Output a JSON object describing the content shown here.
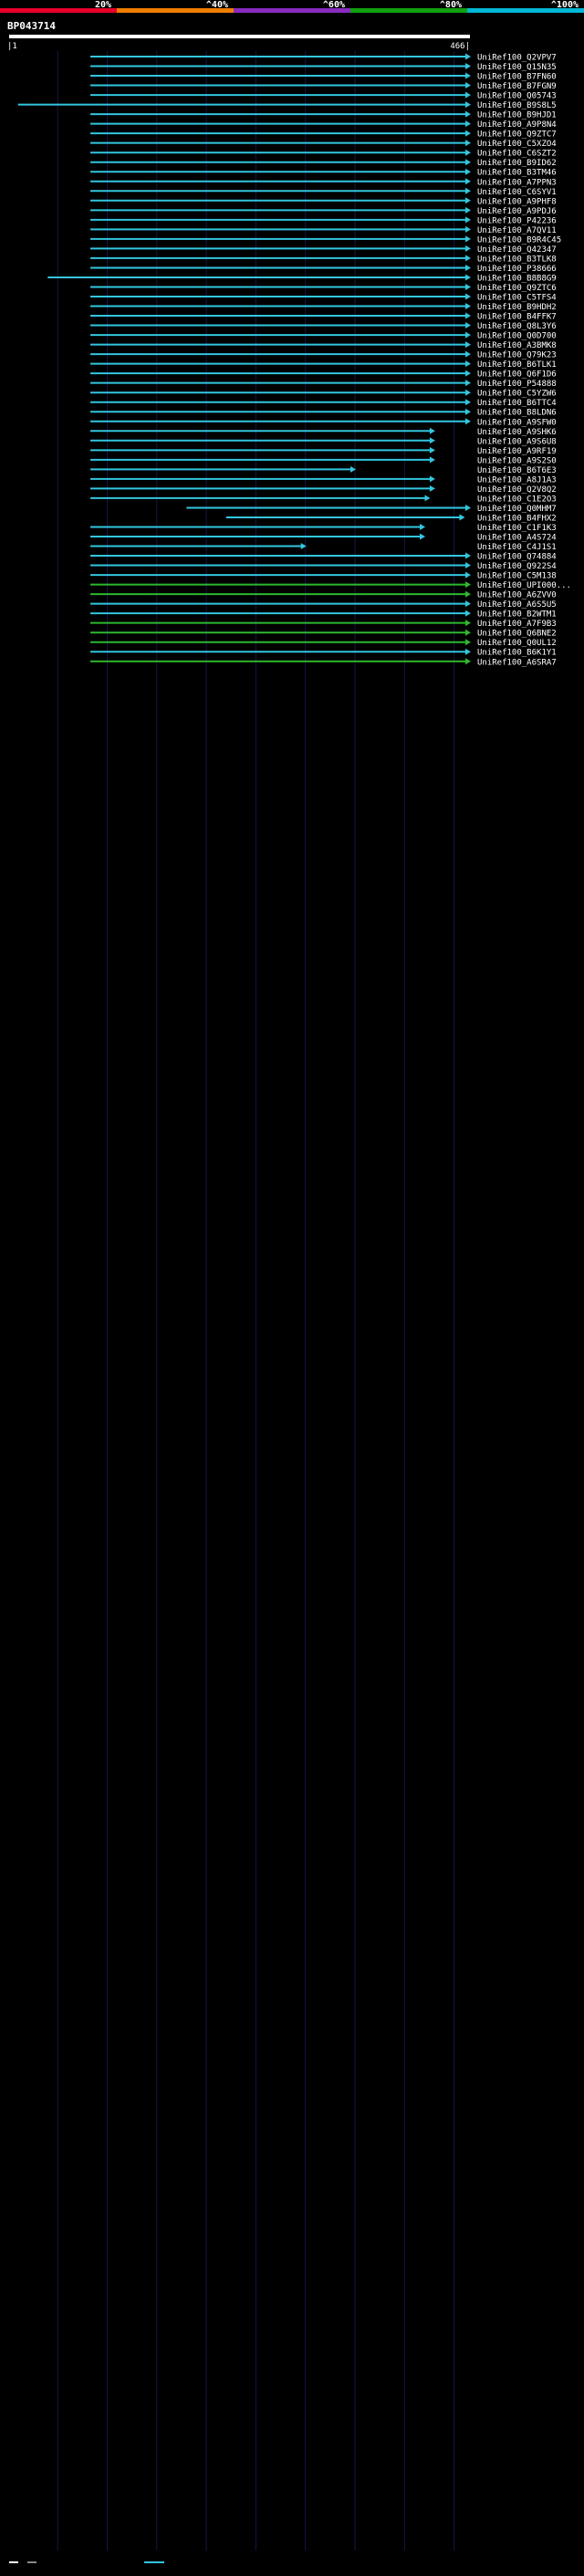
{
  "chart_data": {
    "type": "alignment",
    "title": "BP043714",
    "query_length": 466,
    "axis": {
      "start_label": "1",
      "end_label": "466",
      "tick_marks": [
        "1",
        "466"
      ]
    },
    "color_legend": [
      {
        "label": "20%",
        "color": "#e8002a"
      },
      {
        "label": "^40%",
        "color": "#f07d00"
      },
      {
        "label": "^60%",
        "color": "#8a2bbf"
      },
      {
        "label": "^80%",
        "color": "#12a00f"
      },
      {
        "label": "^100%",
        "color": "#00b7d4"
      }
    ],
    "colors": {
      "cyan": "#33c6df",
      "green": "#2eb82e",
      "magenta": "#d24fd2",
      "query": "#ffffff",
      "grid": "#16164a"
    },
    "hit_color_sequence": [
      "cyan",
      "cyan",
      "cyan",
      "cyan",
      "cyan",
      "cyan",
      "cyan",
      "cyan",
      "cyan",
      "cyan",
      "cyan",
      "cyan",
      "cyan",
      "cyan",
      "cyan",
      "cyan",
      "cyan",
      "cyan",
      "cyan",
      "cyan",
      "cyan",
      "cyan",
      "cyan",
      "cyan",
      "cyan",
      "cyan",
      "cyan",
      "cyan",
      "cyan",
      "cyan",
      "cyan",
      "cyan",
      "cyan",
      "cyan",
      "cyan",
      "cyan",
      "cyan",
      "cyan",
      "cyan",
      "cyan",
      "cyan",
      "cyan",
      "cyan",
      "cyan",
      "cyan",
      "cyan",
      "cyan",
      "cyan",
      "cyan",
      "cyan",
      "cyan",
      "cyan",
      "cyan",
      "cyan",
      "cyan",
      "green",
      "green",
      "cyan",
      "cyan",
      "green",
      "green",
      "green",
      "cyan",
      "green"
    ],
    "hits": [
      {
        "name": "UniRef100_Q2VPV7",
        "start": 83,
        "end": 466
      },
      {
        "name": "UniRef100_Q15N35",
        "start": 83,
        "end": 466
      },
      {
        "name": "UniRef100_B7FN60",
        "start": 83,
        "end": 466
      },
      {
        "name": "UniRef100_B7FGN9",
        "start": 83,
        "end": 466
      },
      {
        "name": "UniRef100_Q05743",
        "start": 83,
        "end": 466
      },
      {
        "name": "UniRef100_B9S8L5",
        "start": 10,
        "end": 466
      },
      {
        "name": "UniRef100_B9HJD1",
        "start": 83,
        "end": 466
      },
      {
        "name": "UniRef100_A9P8N4",
        "start": 83,
        "end": 466
      },
      {
        "name": "UniRef100_Q9ZTC7",
        "start": 83,
        "end": 466
      },
      {
        "name": "UniRef100_C5XZO4",
        "start": 83,
        "end": 466
      },
      {
        "name": "UniRef100_C6SZT2",
        "start": 83,
        "end": 466
      },
      {
        "name": "UniRef100_B9ID62",
        "start": 83,
        "end": 466
      },
      {
        "name": "UniRef100_B3TM46",
        "start": 83,
        "end": 466
      },
      {
        "name": "UniRef100_A7PPN3",
        "start": 83,
        "end": 466
      },
      {
        "name": "UniRef100_C6SYV1",
        "start": 83,
        "end": 466
      },
      {
        "name": "UniRef100_A9PHF8",
        "start": 83,
        "end": 466
      },
      {
        "name": "UniRef100_A9PDJ6",
        "start": 83,
        "end": 466
      },
      {
        "name": "UniRef100_P42236",
        "start": 83,
        "end": 466
      },
      {
        "name": "UniRef100_A7QV11",
        "start": 83,
        "end": 466
      },
      {
        "name": "UniRef100_B9R4C45",
        "start": 83,
        "end": 466
      },
      {
        "name": "UniRef100_Q42347",
        "start": 83,
        "end": 466
      },
      {
        "name": "UniRef100_B3TLK8",
        "start": 83,
        "end": 466
      },
      {
        "name": "UniRef100_P38666",
        "start": 83,
        "end": 466
      },
      {
        "name": "UniRef100_B8B8G9",
        "start": 40,
        "end": 466
      },
      {
        "name": "UniRef100_Q9ZTC6",
        "start": 83,
        "end": 466
      },
      {
        "name": "UniRef100_C5TFS4",
        "start": 83,
        "end": 466
      },
      {
        "name": "UniRef100_B9HDH2",
        "start": 83,
        "end": 466
      },
      {
        "name": "UniRef100_B4FFK7",
        "start": 83,
        "end": 466
      },
      {
        "name": "UniRef100_Q8L3Y6",
        "start": 83,
        "end": 466
      },
      {
        "name": "UniRef100_Q0D700",
        "start": 83,
        "end": 466
      },
      {
        "name": "UniRef100_A3BMK8",
        "start": 83,
        "end": 466
      },
      {
        "name": "UniRef100_Q79K23",
        "start": 83,
        "end": 466
      },
      {
        "name": "UniRef100_B6TLK1",
        "start": 83,
        "end": 466
      },
      {
        "name": "UniRef100_Q6F1D6",
        "start": 83,
        "end": 466
      },
      {
        "name": "UniRef100_P54888",
        "start": 83,
        "end": 466
      },
      {
        "name": "UniRef100_C5YZW6",
        "start": 83,
        "end": 466
      },
      {
        "name": "UniRef100_B6TTC4",
        "start": 83,
        "end": 466
      },
      {
        "name": "UniRef100_B8LDN6",
        "start": 83,
        "end": 466
      },
      {
        "name": "UniRef100_A9SFW0",
        "start": 83,
        "end": 466
      },
      {
        "name": "UniRef100_A9SHK6",
        "start": 83,
        "end": 430
      },
      {
        "name": "UniRef100_A9S6U8",
        "start": 83,
        "end": 430
      },
      {
        "name": "UniRef100_A9RF19",
        "start": 83,
        "end": 430
      },
      {
        "name": "UniRef100_A9S2S0",
        "start": 83,
        "end": 430
      },
      {
        "name": "UniRef100_B6T6E3",
        "start": 83,
        "end": 350
      },
      {
        "name": "UniRef100_A8J1A3",
        "start": 83,
        "end": 430
      },
      {
        "name": "UniRef100_Q2V8Q2",
        "start": 83,
        "end": 430
      },
      {
        "name": "UniRef100_C1E2O3",
        "start": 83,
        "end": 425
      },
      {
        "name": "UniRef100_Q0MHM7",
        "start": 180,
        "end": 466
      },
      {
        "name": "UniRef100_B4FHX2",
        "start": 220,
        "end": 460
      },
      {
        "name": "UniRef100_C1F1K3",
        "start": 83,
        "end": 420
      },
      {
        "name": "UniRef100_A4S724",
        "start": 83,
        "end": 420
      },
      {
        "name": "UniRef100_C4J1S1",
        "start": 83,
        "end": 300
      },
      {
        "name": "UniRef100_Q74884",
        "start": 83,
        "end": 466
      },
      {
        "name": "UniRef100_Q922S4",
        "start": 83,
        "end": 466
      },
      {
        "name": "UniRef100_C5M138",
        "start": 83,
        "end": 466
      },
      {
        "name": "UniRef100_UPI000...",
        "start": 83,
        "end": 466
      },
      {
        "name": "UniRef100_A6ZVV0",
        "start": 83,
        "end": 466
      },
      {
        "name": "UniRef100_A6S5U5",
        "start": 83,
        "end": 466
      },
      {
        "name": "UniRef100_B2WTM1",
        "start": 83,
        "end": 466
      },
      {
        "name": "UniRef100_A7F9B3",
        "start": 83,
        "end": 466
      },
      {
        "name": "UniRef100_Q6BNE2",
        "start": 83,
        "end": 466
      },
      {
        "name": "UniRef100_Q0UL12",
        "start": 83,
        "end": 466
      },
      {
        "name": "UniRef100_B6K1Y1",
        "start": 83,
        "end": 466
      },
      {
        "name": "UniRef100_A6SRA7",
        "start": 83,
        "end": 466
      }
    ]
  }
}
